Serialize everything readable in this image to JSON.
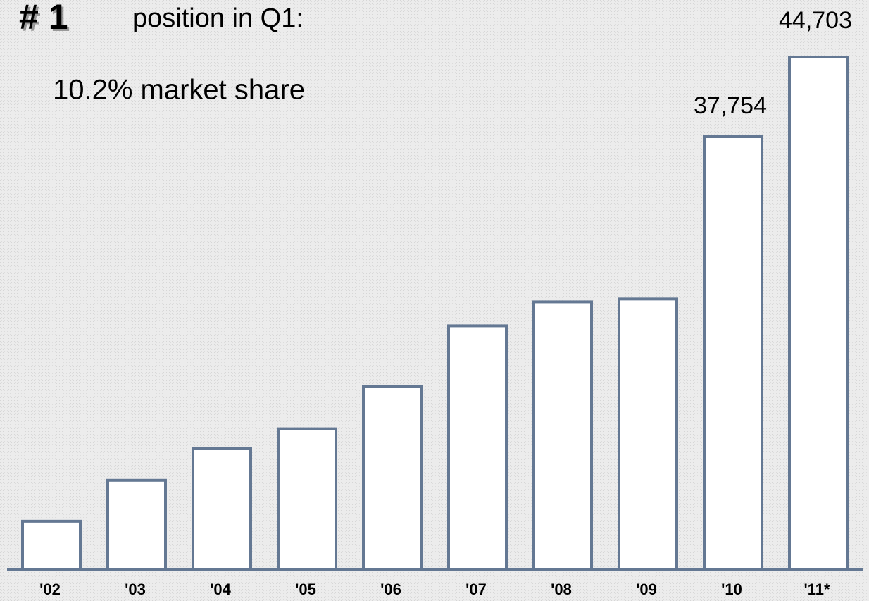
{
  "chart_data": {
    "type": "bar",
    "title_rank": "# 1",
    "title": "position in Q1:",
    "subtitle": "10.2% market share",
    "categories": [
      "'02",
      "'03",
      "'04",
      "'05",
      "'06",
      "'07",
      "'08",
      "'09",
      "'10",
      "'11*"
    ],
    "values": [
      4190,
      7760,
      10530,
      12260,
      15950,
      21250,
      23340,
      23590,
      37754,
      44703
    ],
    "value_labels": [
      null,
      null,
      null,
      null,
      null,
      null,
      null,
      null,
      "37,754",
      "44,703"
    ],
    "color": "#ffffff",
    "edge_color": "#647893"
  }
}
